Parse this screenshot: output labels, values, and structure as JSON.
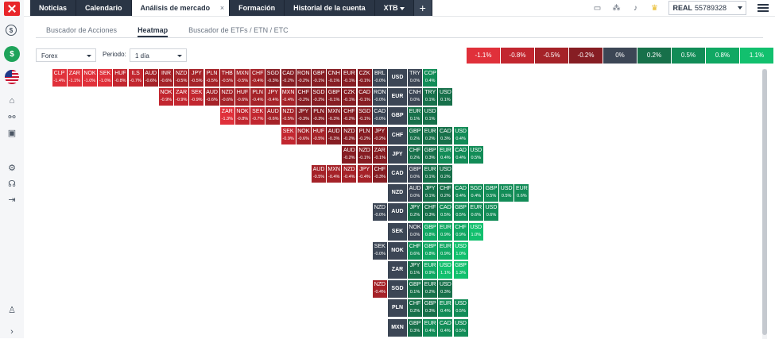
{
  "tabs": [
    {
      "label": "Noticias"
    },
    {
      "label": "Calendario"
    },
    {
      "label": "Análisis de mercado",
      "active": true,
      "close": "×"
    },
    {
      "label": "Formación"
    },
    {
      "label": "Historial de la cuenta"
    },
    {
      "label": "XTB",
      "dropdown": true
    },
    {
      "label": "+",
      "plus": true
    }
  ],
  "account": {
    "type": "REAL",
    "number": "55789328"
  },
  "subtabs": [
    {
      "label": "Buscador de Acciones"
    },
    {
      "label": "Heatmap",
      "active": true
    },
    {
      "label": "Buscador de ETFs / ETN / ETC"
    }
  ],
  "filters": {
    "market": "Forex",
    "period_label": "Periodo:",
    "period": "1 día"
  },
  "legend": [
    {
      "label": "-1.1%",
      "color": "#e0303a"
    },
    {
      "label": "-0.8%",
      "color": "#c2262f"
    },
    {
      "label": "-0.5%",
      "color": "#a52228"
    },
    {
      "label": "-0.2%",
      "color": "#861d23"
    },
    {
      "label": "0%",
      "color": "#3c4655"
    },
    {
      "label": "0.2%",
      "color": "#17704a"
    },
    {
      "label": "0.5%",
      "color": "#128c57"
    },
    {
      "label": "0.8%",
      "color": "#10a863"
    },
    {
      "label": "1.1%",
      "color": "#12c06e"
    }
  ],
  "heatmap": [
    {
      "base": "USD",
      "left": [
        [
          "CLP",
          "-1.4%"
        ],
        [
          "ZAR",
          "-1.1%"
        ],
        [
          "NOK",
          "-1.0%"
        ],
        [
          "SEK",
          "-1.0%"
        ],
        [
          "HUF",
          "-0.8%"
        ],
        [
          "ILS",
          "-0.7%"
        ],
        [
          "AUD",
          "-0.6%"
        ],
        [
          "INR",
          "-0.6%"
        ],
        [
          "NZD",
          "-0.5%"
        ],
        [
          "JPY",
          "-0.5%"
        ],
        [
          "PLN",
          "-0.5%"
        ],
        [
          "THB",
          "-0.5%"
        ],
        [
          "MXN",
          "-0.5%"
        ],
        [
          "CHF",
          "-0.4%"
        ],
        [
          "SGD",
          "-0.3%"
        ],
        [
          "CAD",
          "-0.2%"
        ],
        [
          "RON",
          "-0.2%"
        ],
        [
          "GBP",
          "-0.1%"
        ],
        [
          "CNH",
          "-0.1%"
        ],
        [
          "EUR",
          "-0.1%"
        ],
        [
          "CZK",
          "-0.1%"
        ],
        [
          "BRL",
          "-0.0%"
        ]
      ],
      "right": [
        [
          "TRY",
          "0.0%"
        ],
        [
          "COP",
          "0.4%"
        ]
      ]
    },
    {
      "base": "EUR",
      "left": [
        [
          "NOK",
          "-0.9%"
        ],
        [
          "ZAR",
          "-0.9%"
        ],
        [
          "SEK",
          "-0.9%"
        ],
        [
          "AUD",
          "-0.6%"
        ],
        [
          "NZD",
          "-0.6%"
        ],
        [
          "HUF",
          "-0.6%"
        ],
        [
          "PLN",
          "-0.4%"
        ],
        [
          "JPY",
          "-0.4%"
        ],
        [
          "MXN",
          "-0.4%"
        ],
        [
          "CHF",
          "-0.2%"
        ],
        [
          "SGD",
          "-0.2%"
        ],
        [
          "GBP",
          "-0.1%"
        ],
        [
          "CZK",
          "-0.1%"
        ],
        [
          "CAD",
          "-0.1%"
        ],
        [
          "RON",
          "-0.0%"
        ]
      ],
      "right": [
        [
          "CNH",
          "0.0%"
        ],
        [
          "TRY",
          "0.1%"
        ],
        [
          "USD",
          "0.1%"
        ]
      ]
    },
    {
      "base": "GBP",
      "left": [
        [
          "ZAR",
          "-1.3%"
        ],
        [
          "NOK",
          "-0.8%"
        ],
        [
          "SEK",
          "-0.7%"
        ],
        [
          "AUD",
          "-0.6%"
        ],
        [
          "NZD",
          "-0.5%"
        ],
        [
          "JPY",
          "-0.3%"
        ],
        [
          "PLN",
          "-0.3%"
        ],
        [
          "MXN",
          "-0.3%"
        ],
        [
          "CHF",
          "-0.2%"
        ],
        [
          "SGD",
          "-0.1%"
        ],
        [
          "CAD",
          "-0.0%"
        ]
      ],
      "right": [
        [
          "EUR",
          "0.1%"
        ],
        [
          "USD",
          "0.1%"
        ]
      ]
    },
    {
      "base": "CHF",
      "left": [
        [
          "SEK",
          "-0.9%"
        ],
        [
          "NOK",
          "-0.6%"
        ],
        [
          "HUF",
          "-0.5%"
        ],
        [
          "AUD",
          "-0.3%"
        ],
        [
          "NZD",
          "-0.2%"
        ],
        [
          "PLN",
          "-0.2%"
        ],
        [
          "JPY",
          "-0.2%"
        ]
      ],
      "right": [
        [
          "GBP",
          "0.2%"
        ],
        [
          "EUR",
          "0.2%"
        ],
        [
          "CAD",
          "0.3%"
        ],
        [
          "USD",
          "0.4%"
        ]
      ]
    },
    {
      "base": "JPY",
      "left": [
        [
          "AUD",
          "-0.2%"
        ],
        [
          "NZD",
          "-0.1%"
        ],
        [
          "ZAR",
          "-0.1%"
        ]
      ],
      "right": [
        [
          "CHF",
          "0.2%"
        ],
        [
          "GBP",
          "0.3%"
        ],
        [
          "EUR",
          "0.4%"
        ],
        [
          "CAD",
          "0.4%"
        ],
        [
          "USD",
          "0.5%"
        ]
      ]
    },
    {
      "base": "CAD",
      "left": [
        [
          "AUD",
          "-0.5%"
        ],
        [
          "MXN",
          "-0.4%"
        ],
        [
          "NZD",
          "-0.4%"
        ],
        [
          "JPY",
          "-0.4%"
        ],
        [
          "CHF",
          "-0.3%"
        ]
      ],
      "right": [
        [
          "GBP",
          "0.0%"
        ],
        [
          "EUR",
          "0.1%"
        ],
        [
          "USD",
          "0.2%"
        ]
      ]
    },
    {
      "base": "NZD",
      "left": [],
      "right": [
        [
          "AUD",
          "0.0%"
        ],
        [
          "JPY",
          "0.1%"
        ],
        [
          "CHF",
          "0.2%"
        ],
        [
          "CAD",
          "0.4%"
        ],
        [
          "SGD",
          "0.4%"
        ],
        [
          "GBP",
          "0.5%"
        ],
        [
          "USD",
          "0.5%"
        ],
        [
          "EUR",
          "0.6%"
        ]
      ]
    },
    {
      "base": "AUD",
      "left": [
        [
          "NZD",
          "-0.0%"
        ]
      ],
      "right": [
        [
          "JPY",
          "0.2%"
        ],
        [
          "CHF",
          "0.3%"
        ],
        [
          "CAD",
          "0.5%"
        ],
        [
          "GBP",
          "0.5%"
        ],
        [
          "EUR",
          "0.6%"
        ],
        [
          "USD",
          "0.6%"
        ]
      ]
    },
    {
      "base": "SEK",
      "left": [],
      "right": [
        [
          "NOK",
          "0.0%"
        ],
        [
          "GBP",
          "0.8%"
        ],
        [
          "EUR",
          "0.9%"
        ],
        [
          "CHF",
          "0.9%"
        ],
        [
          "USD",
          "1.0%"
        ]
      ]
    },
    {
      "base": "NOK",
      "left": [
        [
          "SEK",
          "-0.0%"
        ]
      ],
      "right": [
        [
          "CHF",
          "0.6%"
        ],
        [
          "GBP",
          "0.8%"
        ],
        [
          "EUR",
          "0.9%"
        ],
        [
          "USD",
          "1.0%"
        ]
      ]
    },
    {
      "base": "ZAR",
      "left": [],
      "right": [
        [
          "JPY",
          "0.1%"
        ],
        [
          "EUR",
          "0.9%"
        ],
        [
          "USD",
          "1.1%"
        ],
        [
          "GBP",
          "1.3%"
        ]
      ]
    },
    {
      "base": "SGD",
      "left": [
        [
          "NZD",
          "-0.4%"
        ]
      ],
      "right": [
        [
          "GBP",
          "0.1%"
        ],
        [
          "EUR",
          "0.2%"
        ],
        [
          "USD",
          "0.3%"
        ]
      ]
    },
    {
      "base": "PLN",
      "left": [],
      "right": [
        [
          "CHF",
          "0.2%"
        ],
        [
          "GBP",
          "0.3%"
        ],
        [
          "EUR",
          "0.4%"
        ],
        [
          "USD",
          "0.5%"
        ]
      ]
    },
    {
      "base": "MXN",
      "left": [],
      "right": [
        [
          "GBP",
          "0.3%"
        ],
        [
          "EUR",
          "0.4%"
        ],
        [
          "CAD",
          "0.4%"
        ],
        [
          "USD",
          "0.5%"
        ]
      ]
    }
  ]
}
